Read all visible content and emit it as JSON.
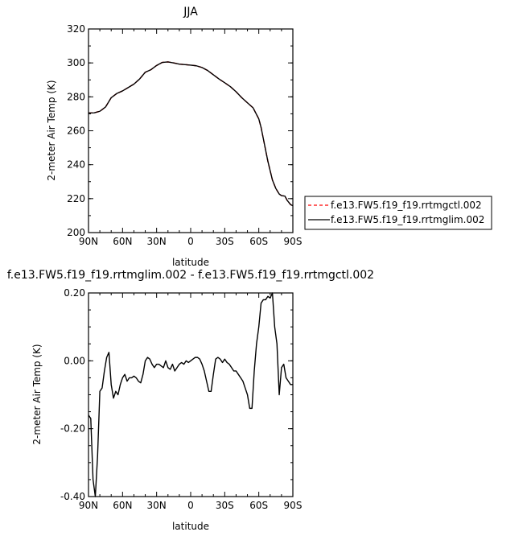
{
  "chart_data": [
    {
      "type": "line",
      "title": "JJA",
      "xlabel": "latitude",
      "ylabel": "2-meter Air Temp (K)",
      "xlim": [
        90,
        -90
      ],
      "ylim": [
        200,
        320
      ],
      "xticks": [
        "90N",
        "60N",
        "30N",
        "0",
        "30S",
        "60S",
        "90S"
      ],
      "yticks": [
        "200",
        "220",
        "240",
        "260",
        "280",
        "300",
        "320"
      ],
      "legend_position": "right",
      "series": [
        {
          "name": "f.e13.FW5.f19_f19.rrtmgctl.002",
          "color": "#ff0000",
          "style": "dashed",
          "x": [
            90,
            85,
            80,
            75,
            70,
            65,
            60,
            55,
            50,
            45,
            40,
            35,
            30,
            25,
            20,
            15,
            10,
            5,
            0,
            -5,
            -10,
            -15,
            -20,
            -25,
            -30,
            -35,
            -40,
            -45,
            -50,
            -55,
            -60,
            -62,
            -65,
            -68,
            -70,
            -72,
            -75,
            -78,
            -80,
            -83,
            -85,
            -88,
            -90
          ],
          "y": [
            270.5,
            270.6,
            271.5,
            274,
            279.5,
            282,
            283.5,
            285.5,
            287.5,
            290.5,
            294.5,
            296,
            298.5,
            300.3,
            300.6,
            300,
            299.3,
            299,
            298.7,
            298.3,
            297.3,
            295.5,
            293,
            290.5,
            288.3,
            286,
            283,
            279.5,
            276.5,
            273.5,
            267,
            262,
            252,
            242,
            236.5,
            231,
            226,
            222.7,
            221.8,
            221.5,
            219,
            216.5,
            215.8
          ]
        },
        {
          "name": "f.e13.FW5.f19_f19.rrtmglim.002",
          "color": "#000000",
          "style": "solid",
          "x": [
            90,
            85,
            80,
            75,
            70,
            65,
            60,
            55,
            50,
            45,
            40,
            35,
            30,
            25,
            20,
            15,
            10,
            5,
            0,
            -5,
            -10,
            -15,
            -20,
            -25,
            -30,
            -35,
            -40,
            -45,
            -50,
            -55,
            -60,
            -62,
            -65,
            -68,
            -70,
            -72,
            -75,
            -78,
            -80,
            -83,
            -85,
            -88,
            -90
          ],
          "y": [
            270.5,
            270.6,
            271.5,
            274,
            279.5,
            282,
            283.5,
            285.5,
            287.5,
            290.5,
            294.5,
            296,
            298.5,
            300.3,
            300.6,
            300,
            299.3,
            299,
            298.7,
            298.3,
            297.3,
            295.5,
            293,
            290.5,
            288.3,
            286,
            283,
            279.5,
            276.5,
            273.5,
            267,
            262,
            252,
            242,
            236.5,
            231,
            226,
            222.7,
            221.8,
            221.5,
            219,
            216.5,
            215.8
          ]
        }
      ]
    },
    {
      "type": "line",
      "title": "f.e13.FW5.f19_f19.rrtmglim.002 - f.e13.FW5.f19_f19.rrtmgctl.002",
      "xlabel": "latitude",
      "ylabel": "2-meter Air Temp (K)",
      "xlim": [
        90,
        -90
      ],
      "ylim": [
        -0.4,
        0.2
      ],
      "xticks": [
        "90N",
        "60N",
        "30N",
        "0",
        "30S",
        "60S",
        "90S"
      ],
      "yticks": [
        "-0.40",
        "-0.20",
        "0.00",
        "0.20"
      ],
      "series": [
        {
          "color": "#000000",
          "style": "solid",
          "x": [
            90,
            88,
            86,
            84,
            82,
            80,
            78,
            76,
            74,
            72,
            70,
            68,
            66,
            64,
            62,
            60,
            58,
            56,
            54,
            52,
            50,
            48,
            46,
            44,
            42,
            40,
            38,
            36,
            34,
            32,
            30,
            28,
            26,
            24,
            22,
            20,
            18,
            16,
            14,
            12,
            10,
            8,
            6,
            4,
            2,
            0,
            -2,
            -4,
            -6,
            -8,
            -10,
            -12,
            -14,
            -16,
            -18,
            -20,
            -22,
            -24,
            -26,
            -28,
            -30,
            -32,
            -34,
            -36,
            -38,
            -40,
            -42,
            -44,
            -46,
            -48,
            -50,
            -52,
            -54,
            -56,
            -58,
            -60,
            -62,
            -64,
            -66,
            -68,
            -70,
            -72,
            -74,
            -76,
            -78,
            -80,
            -82,
            -84,
            -86,
            -88,
            -90
          ],
          "y": [
            -0.16,
            -0.17,
            -0.35,
            -0.4,
            -0.28,
            -0.09,
            -0.08,
            -0.03,
            0.01,
            0.025,
            -0.07,
            -0.11,
            -0.09,
            -0.1,
            -0.07,
            -0.05,
            -0.04,
            -0.06,
            -0.05,
            -0.05,
            -0.045,
            -0.05,
            -0.06,
            -0.065,
            -0.04,
            0.0,
            0.01,
            0.005,
            -0.01,
            -0.02,
            -0.01,
            -0.01,
            -0.015,
            -0.02,
            0.0,
            -0.02,
            -0.025,
            -0.01,
            -0.03,
            -0.02,
            -0.01,
            -0.005,
            -0.01,
            0.0,
            -0.005,
            0.0,
            0.005,
            0.01,
            0.01,
            0.005,
            -0.01,
            -0.03,
            -0.06,
            -0.09,
            -0.09,
            -0.04,
            0.005,
            0.01,
            0.005,
            -0.005,
            0.005,
            -0.005,
            -0.01,
            -0.02,
            -0.03,
            -0.03,
            -0.04,
            -0.05,
            -0.06,
            -0.08,
            -0.1,
            -0.14,
            -0.14,
            -0.03,
            0.05,
            0.1,
            0.17,
            0.18,
            0.18,
            0.19,
            0.185,
            0.2,
            0.1,
            0.05,
            -0.1,
            -0.02,
            -0.01,
            -0.05,
            -0.06,
            -0.07,
            -0.07
          ]
        }
      ]
    }
  ]
}
